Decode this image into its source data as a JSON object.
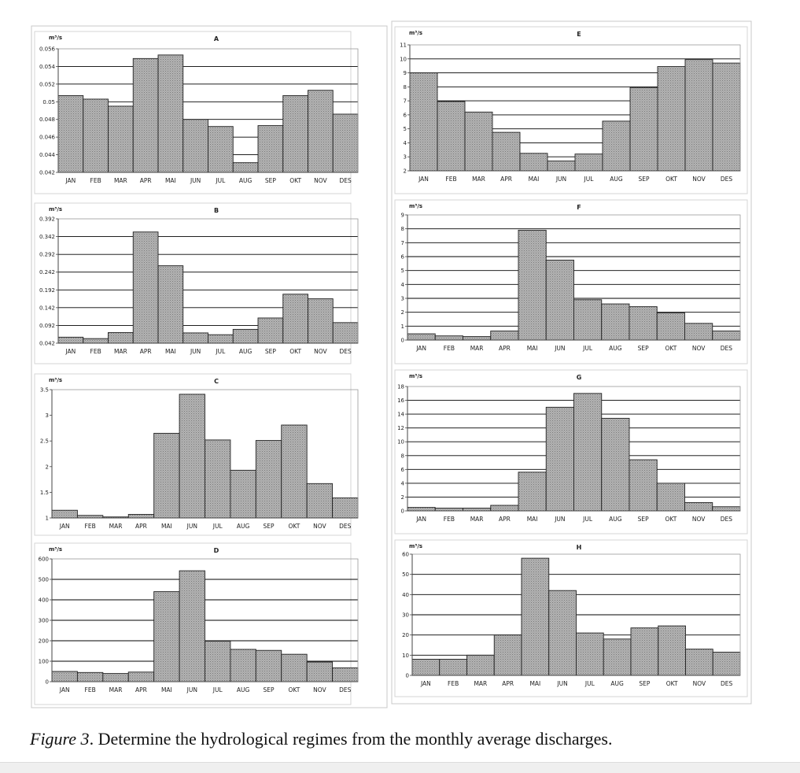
{
  "figure": {
    "caption_label": "Figure 3",
    "caption_text": ". Determine the hydrological regimes from the monthly average discharges."
  },
  "colors": {
    "bar_fill": "#a8a8a8",
    "bar_stroke": "#222222",
    "gridline": "#000000",
    "frame": "#444444"
  },
  "chart_data": [
    {
      "id": "A",
      "type": "bar",
      "title": "A",
      "ylabel": "m³/s",
      "xlabel": "",
      "categories": [
        "JAN",
        "FEB",
        "MAR",
        "APR",
        "MAI",
        "JUN",
        "JUL",
        "AUG",
        "SEP",
        "OKT",
        "NOV",
        "DES"
      ],
      "values": [
        0.0507,
        0.0503,
        0.0495,
        0.0549,
        0.0553,
        0.048,
        0.0472,
        0.0431,
        0.0473,
        0.0507,
        0.0513,
        0.0486
      ],
      "ylim": [
        0.042,
        0.056
      ],
      "yticks": [
        "0.042",
        "0.044",
        "0.046",
        "0.048",
        "0.05",
        "0.052",
        "0.054",
        "0.056"
      ],
      "grid": true
    },
    {
      "id": "B",
      "type": "bar",
      "title": "B",
      "ylabel": "m³/s",
      "xlabel": "",
      "categories": [
        "JAN",
        "FEB",
        "MAR",
        "APR",
        "MAI",
        "JUN",
        "JUL",
        "AUG",
        "SEP",
        "OKT",
        "NOV",
        "DES"
      ],
      "values": [
        0.059,
        0.055,
        0.072,
        0.355,
        0.26,
        0.071,
        0.066,
        0.081,
        0.113,
        0.18,
        0.167,
        0.1
      ],
      "ylim": [
        0.042,
        0.392
      ],
      "yticks": [
        "0.042",
        "0.092",
        "0.142",
        "0.192",
        "0.242",
        "0.292",
        "0.342",
        "0.392"
      ],
      "grid": true
    },
    {
      "id": "C",
      "type": "bar",
      "title": "C",
      "ylabel": "m³/s",
      "xlabel": "",
      "categories": [
        "JAN",
        "FEB",
        "MAR",
        "APR",
        "MAI",
        "JUN",
        "JUL",
        "AUG",
        "SEP",
        "OKT",
        "NOV",
        "DES"
      ],
      "values": [
        1.15,
        1.05,
        1.02,
        1.07,
        2.65,
        3.41,
        2.52,
        1.93,
        2.51,
        2.81,
        1.67,
        1.39
      ],
      "ylim": [
        1,
        3.5
      ],
      "yticks": [
        "1",
        "1.5",
        "2",
        "2.5",
        "3",
        "3.5"
      ],
      "grid": false
    },
    {
      "id": "D",
      "type": "bar",
      "title": "D",
      "ylabel": "m³/s",
      "xlabel": "",
      "categories": [
        "JAN",
        "FEB",
        "MAR",
        "APR",
        "MAI",
        "JUN",
        "JUL",
        "AUG",
        "SEP",
        "OKT",
        "NOV",
        "DES"
      ],
      "values": [
        50,
        45,
        40,
        47,
        440,
        542,
        198,
        158,
        153,
        134,
        96,
        68
      ],
      "ylim": [
        0,
        600
      ],
      "yticks": [
        "0",
        "100",
        "200",
        "300",
        "400",
        "500",
        "600"
      ],
      "grid": true
    },
    {
      "id": "E",
      "type": "bar",
      "title": "E",
      "ylabel": "m³/s",
      "xlabel": "",
      "categories": [
        "JAN",
        "FEB",
        "MAR",
        "APR",
        "MAI",
        "JUN",
        "JUL",
        "AUG",
        "SEP",
        "OKT",
        "NOV",
        "DES"
      ],
      "values": [
        9.0,
        6.95,
        6.2,
        4.75,
        3.25,
        2.7,
        3.2,
        5.55,
        7.95,
        9.45,
        9.95,
        9.7
      ],
      "ylim": [
        2,
        11
      ],
      "yticks": [
        "2",
        "3",
        "4",
        "5",
        "6",
        "7",
        "8",
        "9",
        "10",
        "11"
      ],
      "grid": true
    },
    {
      "id": "F",
      "type": "bar",
      "title": "F",
      "ylabel": "m³/s",
      "xlabel": "",
      "categories": [
        "JAN",
        "FEB",
        "MAR",
        "APR",
        "MAI",
        "JUN",
        "JUL",
        "AUG",
        "SEP",
        "OKT",
        "NOV",
        "DES"
      ],
      "values": [
        0.45,
        0.3,
        0.25,
        0.65,
        7.9,
        5.75,
        2.9,
        2.6,
        2.4,
        1.95,
        1.2,
        0.65
      ],
      "ylim": [
        0,
        9
      ],
      "yticks": [
        "0",
        "1",
        "2",
        "3",
        "4",
        "5",
        "6",
        "7",
        "8",
        "9"
      ],
      "grid": true
    },
    {
      "id": "G",
      "type": "bar",
      "title": "G",
      "ylabel": "m³/s",
      "xlabel": "",
      "categories": [
        "JAN",
        "FEB",
        "MAR",
        "APR",
        "MAI",
        "JUN",
        "JUL",
        "AUG",
        "SEP",
        "OKT",
        "NOV",
        "DES"
      ],
      "values": [
        0.5,
        0.4,
        0.4,
        0.8,
        5.6,
        15.0,
        17.0,
        13.4,
        7.4,
        4.0,
        1.2,
        0.6
      ],
      "ylim": [
        0,
        18
      ],
      "yticks": [
        "0",
        "2",
        "4",
        "6",
        "8",
        "10",
        "12",
        "14",
        "16",
        "18"
      ],
      "grid": true
    },
    {
      "id": "H",
      "type": "bar",
      "title": "H",
      "ylabel": "m³/s",
      "xlabel": "",
      "categories": [
        "JAN",
        "FEB",
        "MAR",
        "APR",
        "MAI",
        "JUN",
        "JUL",
        "AUG",
        "SEP",
        "OKT",
        "NOV",
        "DES"
      ],
      "values": [
        8,
        8,
        10,
        20,
        58,
        42,
        21,
        18,
        23.5,
        24.5,
        13,
        11.5
      ],
      "ylim": [
        0,
        60
      ],
      "yticks": [
        "0",
        "10",
        "20",
        "30",
        "40",
        "50",
        "60"
      ],
      "grid": true
    }
  ]
}
